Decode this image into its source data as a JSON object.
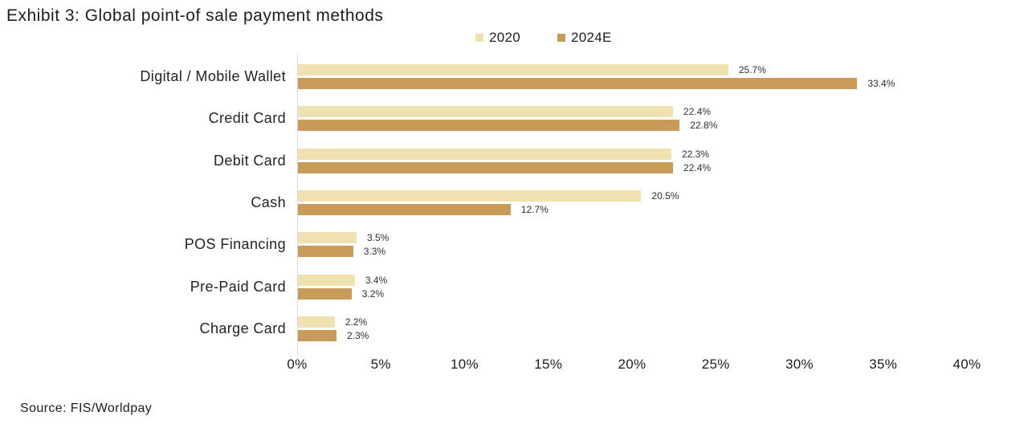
{
  "title": "Exhibit 3: Global point-of sale payment methods",
  "source": "Source: FIS/Worldpay",
  "chart_data": {
    "type": "bar",
    "orientation": "horizontal",
    "title": "Exhibit 3: Global point-of sale payment methods",
    "categories": [
      "Digital / Mobile Wallet",
      "Credit Card",
      "Debit Card",
      "Cash",
      "POS Financing",
      "Pre-Paid Card",
      "Charge Card"
    ],
    "series": [
      {
        "name": "2020",
        "color": "#F0E2B0",
        "values": [
          25.7,
          22.4,
          22.3,
          20.5,
          3.5,
          3.4,
          2.2
        ]
      },
      {
        "name": "2024E",
        "color": "#C89C58",
        "values": [
          33.4,
          22.8,
          22.4,
          12.7,
          3.3,
          3.2,
          2.3
        ]
      }
    ],
    "value_suffix": "%",
    "data_labels": [
      "25.7%",
      "33.4%",
      "22.4%",
      "22.8%",
      "22.3%",
      "22.4%",
      "20.5%",
      "12.7%",
      "3.5%",
      "3.3%",
      "3.4%",
      "3.2%",
      "2.2%",
      "2.3%"
    ],
    "x_ticks": [
      "0%",
      "5%",
      "10%",
      "15%",
      "20%",
      "25%",
      "30%",
      "35%",
      "40%"
    ],
    "xlim": [
      0,
      40
    ],
    "xlabel": "",
    "ylabel": "",
    "grid": false,
    "legend_position": "top-center",
    "axis_line_color": "#d8d8d8"
  }
}
